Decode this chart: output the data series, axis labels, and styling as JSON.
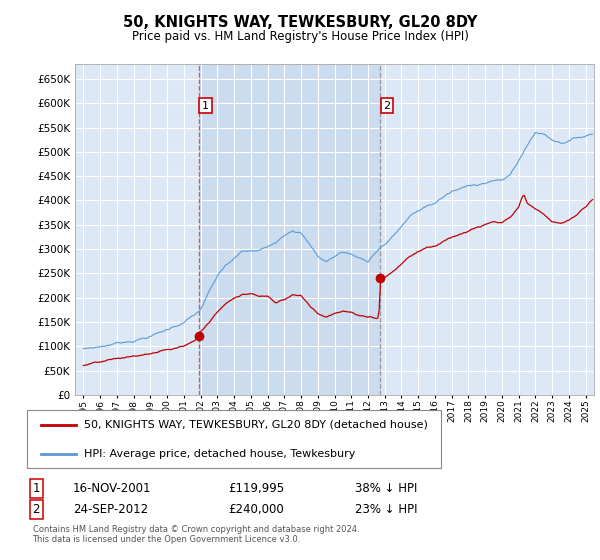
{
  "title": "50, KNIGHTS WAY, TEWKESBURY, GL20 8DY",
  "subtitle": "Price paid vs. HM Land Registry's House Price Index (HPI)",
  "legend_line1": "50, KNIGHTS WAY, TEWKESBURY, GL20 8DY (detached house)",
  "legend_line2": "HPI: Average price, detached house, Tewkesbury",
  "annotation1_label": "1",
  "annotation1_date": "16-NOV-2001",
  "annotation1_price": "£119,995",
  "annotation1_hpi": "38% ↓ HPI",
  "annotation1_year": 2001.88,
  "annotation1_value": 119995,
  "annotation2_label": "2",
  "annotation2_date": "24-SEP-2012",
  "annotation2_price": "£240,000",
  "annotation2_hpi": "23% ↓ HPI",
  "annotation2_year": 2012.73,
  "annotation2_value": 240000,
  "ylim_min": 0,
  "ylim_max": 680000,
  "yticks": [
    0,
    50000,
    100000,
    150000,
    200000,
    250000,
    300000,
    350000,
    400000,
    450000,
    500000,
    550000,
    600000,
    650000
  ],
  "xlim_min": 1994.5,
  "xlim_max": 2025.5,
  "background_color": "#ffffff",
  "plot_bg_color": "#dce8f5",
  "grid_color": "#ffffff",
  "shade_color": "#c5d8ed",
  "hpi_color": "#5b9bd5",
  "price_color": "#c00000",
  "footer": "Contains HM Land Registry data © Crown copyright and database right 2024.\nThis data is licensed under the Open Government Licence v3.0."
}
